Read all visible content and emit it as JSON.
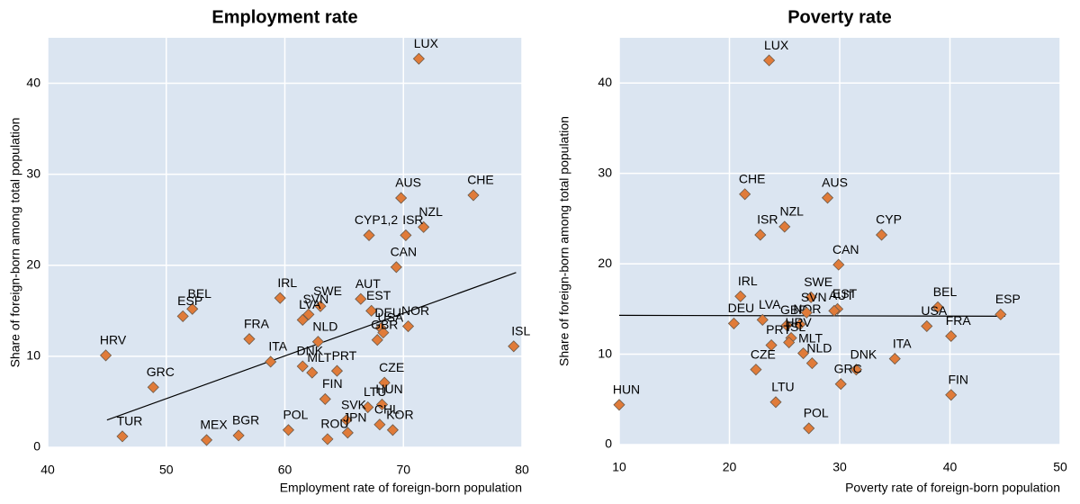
{
  "chart_data": [
    {
      "type": "scatter",
      "title": "Employment rate",
      "x_label": "Employment rate of foreign-born population",
      "y_label": "Share of foreign-born among total population",
      "xlim": [
        40,
        80
      ],
      "xticks": [
        40,
        50,
        60,
        70,
        80
      ],
      "ylim": [
        0,
        45
      ],
      "yticks": [
        0,
        10,
        20,
        30,
        40
      ],
      "grid": true,
      "color": "#e07b39",
      "labels": [
        "LUX",
        "CHE",
        "AUS",
        "NZL",
        "ISR",
        "CYP1,2",
        "CAN",
        "IRL",
        "AUT",
        "SWE",
        "BEL",
        "EST",
        "SVN",
        "ESP",
        "LVA",
        "DEU",
        "NOR",
        "USA",
        "FRA",
        "NLD",
        "GBR",
        "ISL",
        "HRV",
        "ITA",
        "DNK",
        "PRT",
        "MLT",
        "CZE",
        "GRC",
        "FIN",
        "HUN",
        "LTU",
        "SVK",
        "CHL",
        "KOR",
        "JPN",
        "ROU",
        "POL",
        "BGR",
        "MEX",
        "TUR"
      ],
      "x": [
        71.3,
        75.9,
        69.8,
        71.7,
        70.2,
        67.1,
        69.4,
        59.6,
        66.4,
        63.0,
        52.2,
        67.3,
        62.0,
        51.4,
        61.5,
        68.1,
        70.4,
        68.3,
        57.0,
        62.8,
        67.8,
        79.3,
        44.9,
        58.8,
        61.5,
        64.4,
        62.3,
        68.4,
        48.9,
        63.4,
        68.2,
        67.0,
        65.2,
        68.0,
        69.1,
        65.3,
        63.6,
        60.3,
        56.1,
        53.4,
        46.3
      ],
      "y": [
        42.7,
        27.7,
        27.4,
        24.2,
        23.3,
        23.3,
        19.8,
        16.4,
        16.3,
        15.5,
        15.2,
        15.0,
        14.6,
        14.4,
        14.0,
        13.1,
        13.3,
        12.6,
        11.9,
        11.6,
        11.8,
        11.1,
        10.1,
        9.4,
        8.9,
        8.4,
        8.2,
        7.1,
        6.6,
        5.3,
        4.7,
        4.4,
        3.0,
        2.5,
        1.9,
        1.6,
        0.9,
        1.9,
        1.3,
        0.8,
        1.2
      ],
      "trendline": {
        "x": [
          45,
          79.5
        ],
        "y": [
          3.0,
          19.2
        ]
      }
    },
    {
      "type": "scatter",
      "title": "Poverty rate",
      "x_label": "Poverty rate of foreign-born population",
      "y_label": "Share of foreign-born among total population",
      "xlim": [
        10,
        50
      ],
      "xticks": [
        10,
        20,
        30,
        40,
        50
      ],
      "ylim": [
        0,
        45
      ],
      "yticks": [
        0,
        10,
        20,
        30,
        40
      ],
      "grid": true,
      "color": "#e07b39",
      "labels": [
        "LUX",
        "CHE",
        "AUS",
        "NZL",
        "ISR",
        "CYP",
        "CAN",
        "IRL",
        "SWE",
        "EST",
        "AUT",
        "BEL",
        "ESP",
        "LVA",
        "DEU",
        "NOR",
        "GBR",
        "SVN",
        "USA",
        "FRA",
        "HRV",
        "ISL",
        "MLT",
        "ITA",
        "DNK",
        "GRC",
        "NLD",
        "PRT",
        "CZE",
        "LTU",
        "FIN",
        "HUN",
        "POL"
      ],
      "x": [
        23.6,
        21.4,
        28.9,
        25.0,
        22.8,
        33.8,
        29.9,
        21.0,
        27.4,
        29.8,
        29.5,
        38.9,
        44.6,
        23.0,
        20.4,
        26.4,
        25.2,
        27.0,
        37.9,
        40.1,
        25.6,
        25.4,
        26.7,
        35.0,
        31.5,
        30.1,
        27.5,
        23.8,
        22.4,
        24.2,
        40.1,
        10.0,
        27.2
      ],
      "y": [
        42.5,
        27.7,
        27.3,
        24.1,
        23.2,
        23.2,
        19.9,
        16.4,
        16.3,
        15.0,
        14.8,
        15.2,
        14.4,
        13.8,
        13.4,
        13.3,
        13.2,
        14.6,
        13.1,
        12.0,
        11.8,
        11.3,
        10.1,
        9.5,
        8.3,
        6.7,
        9.0,
        11.0,
        8.3,
        4.7,
        5.5,
        4.4,
        1.8
      ],
      "trendline": {
        "x": [
          10,
          45
        ],
        "y": [
          14.3,
          14.2
        ]
      }
    }
  ]
}
